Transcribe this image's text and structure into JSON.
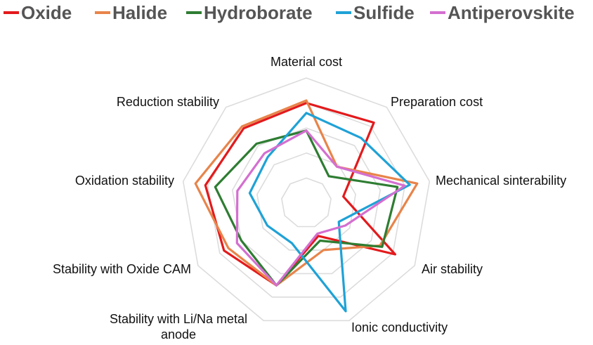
{
  "chart_data": {
    "type": "radar",
    "axes": [
      "Material cost",
      "Preparation cost",
      "Mechanical sinterability",
      "Air stability",
      "Ionic conductivity",
      "Stability with Li/Na metal anode",
      "Stability with Oxide CAM",
      "Oxidation stability",
      "Reduction stability"
    ],
    "axis_label_lines": [
      [
        "Material cost"
      ],
      [
        "Preparation cost"
      ],
      [
        "Mechanical sinterability"
      ],
      [
        "Air stability"
      ],
      [
        "Ionic conductivity"
      ],
      [
        "Stability with Li/Na metal",
        "anode"
      ],
      [
        "Stability with Oxide CAM"
      ],
      [
        "Oxidation stability"
      ],
      [
        "Reduction stability"
      ]
    ],
    "rmax": 5,
    "grid_levels": 5,
    "grid": true,
    "legend_position": "top",
    "series": [
      {
        "name": "Oxide",
        "color": "#e31a1c",
        "values": [
          4.0,
          4.2,
          1.5,
          4.1,
          1.4,
          3.5,
          3.8,
          4.1,
          3.9
        ]
      },
      {
        "name": "Halide",
        "color": "#e8844a",
        "values": [
          4.1,
          1.9,
          4.5,
          3.4,
          2.0,
          3.5,
          3.6,
          4.5,
          4.0
        ]
      },
      {
        "name": "Hydroborate",
        "color": "#2e7d32",
        "values": [
          2.9,
          1.4,
          3.7,
          3.5,
          1.6,
          3.5,
          3.0,
          3.7,
          3.1
        ]
      },
      {
        "name": "Sulfide",
        "color": "#1fa2d6",
        "values": [
          3.6,
          3.4,
          4.2,
          1.5,
          4.6,
          1.7,
          1.8,
          2.3,
          2.4
        ]
      },
      {
        "name": "Antiperovskite",
        "color": "#d46fd0",
        "values": [
          2.9,
          1.9,
          4.0,
          1.8,
          1.3,
          3.5,
          3.2,
          2.8,
          2.6
        ]
      }
    ]
  }
}
